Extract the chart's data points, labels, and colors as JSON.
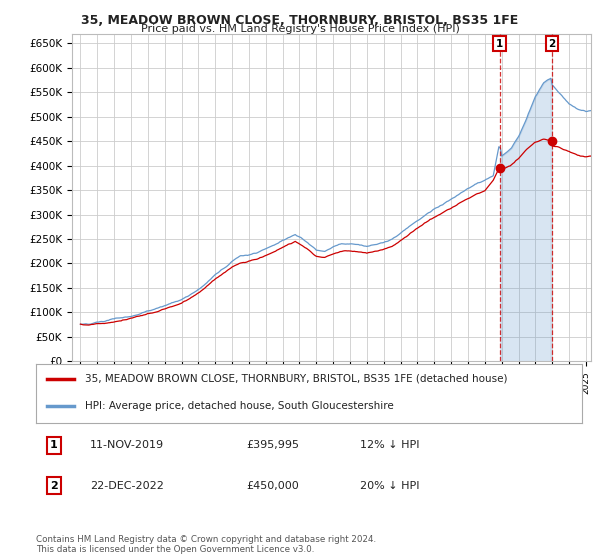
{
  "title": "35, MEADOW BROWN CLOSE, THORNBURY, BRISTOL, BS35 1FE",
  "subtitle": "Price paid vs. HM Land Registry's House Price Index (HPI)",
  "ylabel_ticks": [
    "£0",
    "£50K",
    "£100K",
    "£150K",
    "£200K",
    "£250K",
    "£300K",
    "£350K",
    "£400K",
    "£450K",
    "£500K",
    "£550K",
    "£600K",
    "£650K"
  ],
  "ytick_values": [
    0,
    50000,
    100000,
    150000,
    200000,
    250000,
    300000,
    350000,
    400000,
    450000,
    500000,
    550000,
    600000,
    650000
  ],
  "ylim": [
    0,
    670000
  ],
  "legend_line1": "35, MEADOW BROWN CLOSE, THORNBURY, BRISTOL, BS35 1FE (detached house)",
  "legend_line2": "HPI: Average price, detached house, South Gloucestershire",
  "annotation1_label": "1",
  "annotation1_date": "11-NOV-2019",
  "annotation1_price": "£395,995",
  "annotation1_hpi": "12% ↓ HPI",
  "annotation2_label": "2",
  "annotation2_date": "22-DEC-2022",
  "annotation2_price": "£450,000",
  "annotation2_hpi": "20% ↓ HPI",
  "footnote": "Contains HM Land Registry data © Crown copyright and database right 2024.\nThis data is licensed under the Open Government Licence v3.0.",
  "line_color_red": "#cc0000",
  "line_color_blue": "#6699cc",
  "fill_color_blue": "#ddeeff",
  "background_color": "#ffffff",
  "grid_color": "#cccccc",
  "sale_date1_num": 2019.87,
  "sale_price1": 395995,
  "sale_date2_num": 2022.97,
  "sale_price2": 450000,
  "xlim_low": 1994.5,
  "xlim_high": 2025.3
}
